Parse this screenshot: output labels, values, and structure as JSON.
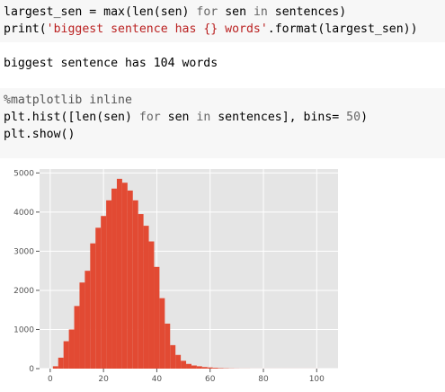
{
  "cells": [
    {
      "type": "code",
      "lines": [
        [
          {
            "t": "largest_sen",
            "c": "var"
          },
          {
            "t": " = ",
            "c": "op"
          },
          {
            "t": "max",
            "c": "fn"
          },
          {
            "t": "(",
            "c": "op"
          },
          {
            "t": "len",
            "c": "fn"
          },
          {
            "t": "(sen) ",
            "c": "op"
          },
          {
            "t": "for",
            "c": "kw"
          },
          {
            "t": " sen ",
            "c": "var"
          },
          {
            "t": "in",
            "c": "kw"
          },
          {
            "t": " sentences)",
            "c": "var"
          }
        ],
        [
          {
            "t": "print",
            "c": "fn"
          },
          {
            "t": "(",
            "c": "op"
          },
          {
            "t": "'biggest sentence has {} words'",
            "c": "str"
          },
          {
            "t": ".format(largest_sen))",
            "c": "var"
          }
        ]
      ]
    },
    {
      "type": "output",
      "text": "biggest sentence has 104 words"
    },
    {
      "type": "code",
      "lines": [
        [
          {
            "t": "%matplotlib inline",
            "c": "magic"
          }
        ],
        [
          {
            "t": "plt.hist([",
            "c": "var"
          },
          {
            "t": "len",
            "c": "fn"
          },
          {
            "t": "(sen) ",
            "c": "op"
          },
          {
            "t": "for",
            "c": "kw"
          },
          {
            "t": " sen ",
            "c": "var"
          },
          {
            "t": "in",
            "c": "kw"
          },
          {
            "t": " sentences], bins",
            "c": "var"
          },
          {
            "t": "= ",
            "c": "op"
          },
          {
            "t": "50",
            "c": "num"
          },
          {
            "t": ")",
            "c": "op"
          }
        ],
        [
          {
            "t": "plt.show()",
            "c": "var"
          }
        ]
      ]
    }
  ],
  "chart_data": {
    "type": "bar",
    "title": "",
    "xlabel": "",
    "ylabel": "",
    "xlim": [
      -4,
      108
    ],
    "ylim": [
      0,
      5100
    ],
    "xticks": [
      0,
      20,
      40,
      60,
      80,
      100
    ],
    "yticks": [
      0,
      1000,
      2000,
      3000,
      4000,
      5000
    ],
    "grid": true,
    "legend": "none",
    "bar_color": "#e24a33",
    "background": "#e5e5e5",
    "bin_width": 2.0,
    "bin_edges_start": 1,
    "values": [
      60,
      280,
      700,
      1000,
      1600,
      2200,
      2500,
      3200,
      3600,
      3900,
      4300,
      4600,
      4850,
      4750,
      4550,
      4300,
      3950,
      3650,
      3250,
      2600,
      1800,
      1150,
      600,
      350,
      200,
      120,
      80,
      60,
      40,
      30,
      20,
      12,
      8,
      5,
      3,
      2,
      2,
      1,
      1,
      1,
      1,
      1,
      1,
      1,
      1,
      1,
      1,
      1,
      1,
      1
    ]
  }
}
